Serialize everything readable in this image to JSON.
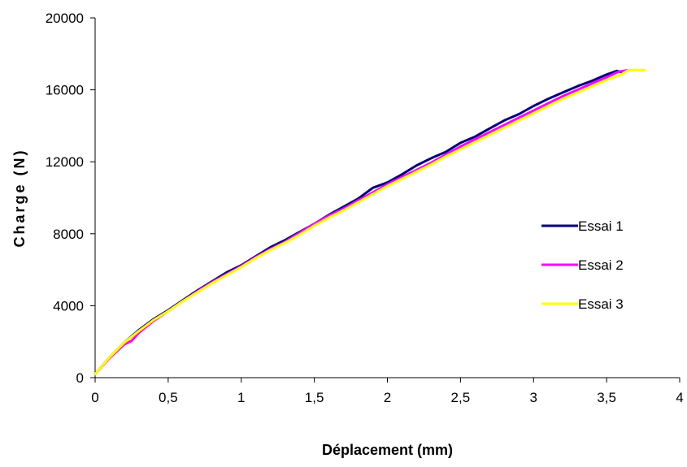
{
  "chart_data": {
    "type": "line",
    "title": "",
    "xlabel": "Déplacement (mm)",
    "ylabel": "Charge (N)",
    "xlim": [
      0,
      4
    ],
    "ylim": [
      0,
      20000
    ],
    "x_ticks": [
      0,
      0.5,
      1,
      1.5,
      2,
      2.5,
      3,
      3.5,
      4
    ],
    "x_tick_labels": [
      "0",
      "0,5",
      "1",
      "1,5",
      "2",
      "2,5",
      "3",
      "3,5",
      "4"
    ],
    "y_ticks": [
      0,
      4000,
      8000,
      12000,
      16000,
      20000
    ],
    "y_tick_labels": [
      "0",
      "4000",
      "8000",
      "12000",
      "16000",
      "20000"
    ],
    "grid": false,
    "legend_position": "right",
    "series": [
      {
        "name": "Essai 1",
        "color": "#000080",
        "x": [
          0,
          0.1,
          0.2,
          0.3,
          0.4,
          0.5,
          0.6,
          0.7,
          0.8,
          0.9,
          1.0,
          1.1,
          1.2,
          1.3,
          1.4,
          1.5,
          1.6,
          1.7,
          1.8,
          1.9,
          2.0,
          2.1,
          2.2,
          2.3,
          2.4,
          2.5,
          2.6,
          2.7,
          2.8,
          2.9,
          3.0,
          3.1,
          3.2,
          3.3,
          3.4,
          3.5,
          3.57,
          3.62
        ],
        "y": [
          200,
          1150,
          1950,
          2650,
          3250,
          3750,
          4300,
          4850,
          5350,
          5850,
          6250,
          6750,
          7250,
          7650,
          8100,
          8550,
          9050,
          9500,
          9950,
          10550,
          10850,
          11300,
          11800,
          12200,
          12550,
          13050,
          13400,
          13850,
          14300,
          14650,
          15100,
          15500,
          15850,
          16200,
          16500,
          16850,
          17050,
          16950
        ]
      },
      {
        "name": "Essai 2",
        "color": "#ff00ff",
        "x": [
          0,
          0.1,
          0.2,
          0.25,
          0.3,
          0.4,
          0.5,
          0.6,
          0.7,
          0.8,
          0.9,
          1.0,
          1.1,
          1.2,
          1.3,
          1.4,
          1.5,
          1.6,
          1.7,
          1.8,
          1.9,
          2.0,
          2.1,
          2.2,
          2.3,
          2.4,
          2.5,
          2.6,
          2.7,
          2.8,
          2.9,
          3.0,
          3.1,
          3.2,
          3.3,
          3.4,
          3.5,
          3.58,
          3.65
        ],
        "y": [
          200,
          1100,
          1850,
          2050,
          2500,
          3150,
          3700,
          4250,
          4800,
          5300,
          5750,
          6200,
          6700,
          7150,
          7550,
          8050,
          8550,
          9000,
          9400,
          9850,
          10300,
          10750,
          11150,
          11550,
          11950,
          12400,
          12850,
          13250,
          13650,
          14050,
          14450,
          14850,
          15250,
          15650,
          16000,
          16350,
          16700,
          17000,
          17100
        ]
      },
      {
        "name": "Essai 3",
        "color": "#ffff00",
        "x": [
          0,
          0.1,
          0.2,
          0.3,
          0.4,
          0.5,
          0.6,
          0.7,
          0.8,
          0.9,
          1.0,
          1.1,
          1.2,
          1.3,
          1.4,
          1.5,
          1.6,
          1.7,
          1.8,
          1.9,
          2.0,
          2.1,
          2.2,
          2.3,
          2.4,
          2.5,
          2.6,
          2.7,
          2.8,
          2.9,
          3.0,
          3.1,
          3.2,
          3.3,
          3.4,
          3.5,
          3.6,
          3.65,
          3.76
        ],
        "y": [
          200,
          1150,
          1950,
          2600,
          3200,
          3700,
          4250,
          4750,
          5250,
          5700,
          6150,
          6650,
          7100,
          7500,
          7950,
          8450,
          8900,
          9300,
          9750,
          10200,
          10650,
          11050,
          11450,
          11850,
          12300,
          12700,
          13100,
          13500,
          13900,
          14300,
          14700,
          15100,
          15500,
          15850,
          16200,
          16550,
          16850,
          17100,
          17100
        ]
      }
    ]
  }
}
